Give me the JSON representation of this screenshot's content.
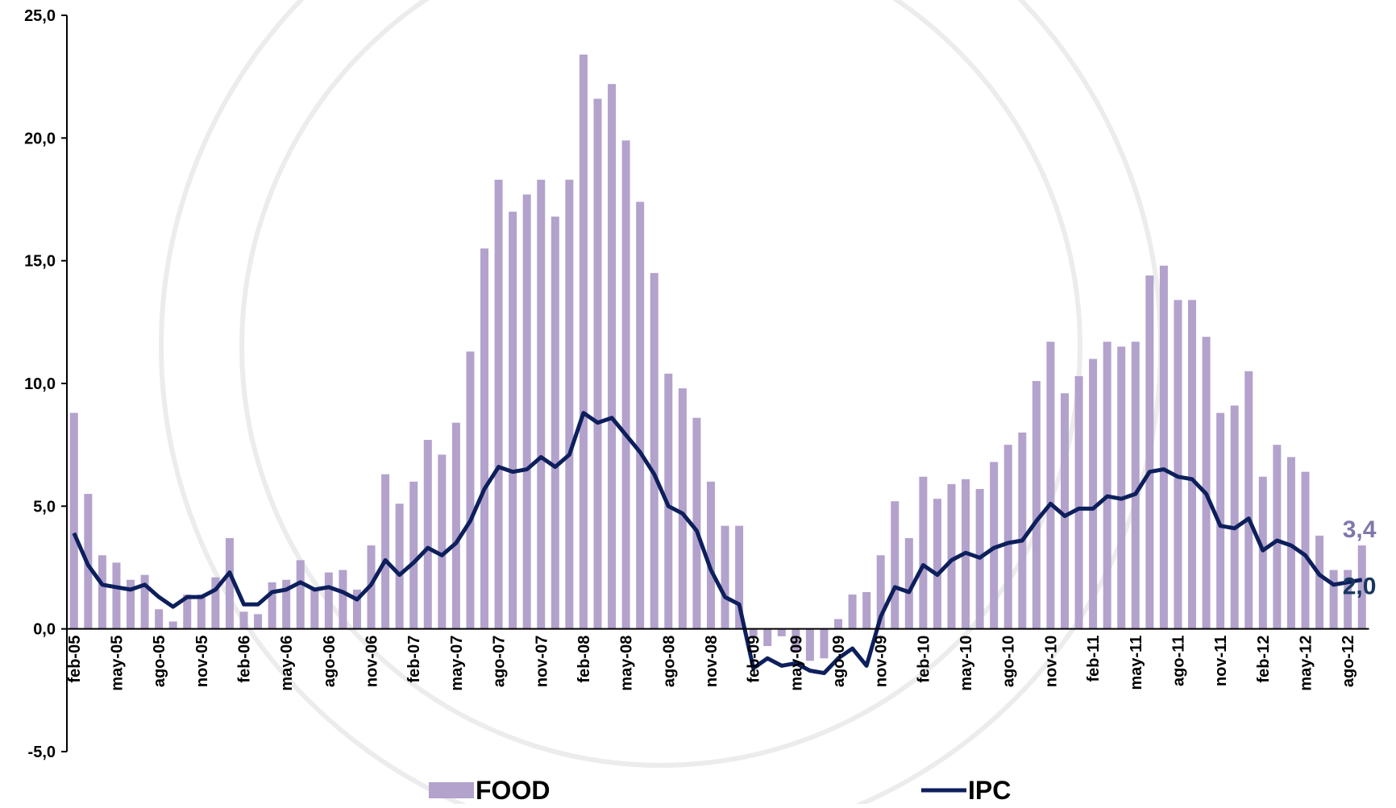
{
  "chart_data": {
    "type": "bar_line",
    "categories": [
      "feb-05",
      null,
      null,
      "may-05",
      null,
      null,
      "ago-05",
      null,
      null,
      "nov-05",
      null,
      null,
      "feb-06",
      null,
      null,
      "may-06",
      null,
      null,
      "ago-06",
      null,
      null,
      "nov-06",
      null,
      null,
      "feb-07",
      null,
      null,
      "may-07",
      null,
      null,
      "ago-07",
      null,
      null,
      "nov-07",
      null,
      null,
      "feb-08",
      null,
      null,
      "may-08",
      null,
      null,
      "ago-08",
      null,
      null,
      "nov-08",
      null,
      null,
      "feb-09",
      null,
      null,
      "may-09",
      null,
      null,
      "ago-09",
      null,
      null,
      "nov-09",
      null,
      null,
      "feb-10",
      null,
      null,
      "may-10",
      null,
      null,
      "ago-10",
      null,
      null,
      "nov-10",
      null,
      null,
      "feb-11",
      null,
      null,
      "may-11",
      null,
      null,
      "ago-11",
      null,
      null,
      "nov-11",
      null,
      null,
      "feb-12",
      null,
      null,
      "may-12",
      null,
      null,
      "ago-12",
      null
    ],
    "series": [
      {
        "name": "FOOD",
        "kind": "bar",
        "color": "#b3a2cc",
        "label_color": "#7f78ab",
        "values": [
          8.8,
          5.5,
          3.0,
          2.7,
          2.0,
          2.2,
          0.8,
          0.3,
          1.4,
          1.4,
          2.1,
          3.7,
          0.7,
          0.6,
          1.9,
          2.0,
          2.8,
          1.6,
          2.3,
          2.4,
          1.6,
          3.4,
          6.3,
          5.1,
          6.0,
          7.7,
          7.1,
          8.4,
          11.3,
          15.5,
          18.3,
          17.0,
          17.7,
          18.3,
          16.8,
          18.3,
          23.4,
          21.6,
          22.2,
          19.9,
          17.4,
          14.5,
          10.4,
          9.8,
          8.6,
          6.0,
          4.2,
          4.2,
          -0.3,
          -0.7,
          -0.3,
          -0.9,
          -1.3,
          -1.2,
          0.4,
          1.4,
          1.5,
          3.0,
          5.2,
          3.7,
          6.2,
          5.3,
          5.9,
          6.1,
          5.7,
          6.8,
          7.5,
          8.0,
          10.1,
          11.7,
          9.6,
          10.3,
          11.0,
          11.7,
          11.5,
          11.7,
          14.4,
          14.8,
          13.4,
          13.4,
          11.9,
          8.8,
          9.1,
          10.5,
          6.2,
          7.5,
          7.0,
          6.4,
          3.8,
          2.4,
          2.4,
          3.4
        ],
        "value_labels": [
          null,
          null,
          null,
          null,
          null,
          null,
          null,
          null,
          null,
          null,
          null,
          null,
          null,
          null,
          null,
          null,
          null,
          null,
          null,
          null,
          null,
          null,
          null,
          null,
          null,
          null,
          null,
          null,
          null,
          null,
          null,
          null,
          null,
          null,
          null,
          null,
          null,
          null,
          null,
          null,
          null,
          null,
          null,
          null,
          null,
          null,
          null,
          null,
          null,
          null,
          null,
          null,
          null,
          null,
          null,
          null,
          null,
          null,
          null,
          null,
          null,
          null,
          null,
          null,
          null,
          null,
          null,
          null,
          null,
          null,
          null,
          null,
          null,
          null,
          null,
          null,
          null,
          null,
          null,
          null,
          null,
          null,
          null,
          null,
          null,
          null,
          null,
          null,
          null,
          null,
          null,
          "3,4"
        ]
      },
      {
        "name": "IPC",
        "kind": "line",
        "color": "#0d1f5c",
        "label_color": "#17375e",
        "values": [
          3.9,
          2.6,
          1.8,
          1.7,
          1.6,
          1.8,
          1.3,
          0.9,
          1.3,
          1.3,
          1.6,
          2.3,
          1.0,
          1.0,
          1.5,
          1.6,
          1.9,
          1.6,
          1.7,
          1.5,
          1.2,
          1.8,
          2.8,
          2.2,
          2.7,
          3.3,
          3.0,
          3.5,
          4.4,
          5.7,
          6.6,
          6.4,
          6.5,
          7.0,
          6.6,
          7.1,
          8.8,
          8.4,
          8.6,
          7.9,
          7.2,
          6.3,
          5.0,
          4.7,
          4.0,
          2.4,
          1.3,
          1.0,
          -1.6,
          -1.2,
          -1.5,
          -1.4,
          -1.7,
          -1.8,
          -1.2,
          -0.8,
          -1.5,
          0.5,
          1.7,
          1.5,
          2.6,
          2.2,
          2.8,
          3.1,
          2.9,
          3.3,
          3.5,
          3.6,
          4.4,
          5.1,
          4.6,
          4.9,
          4.9,
          5.4,
          5.3,
          5.5,
          6.4,
          6.5,
          6.2,
          6.1,
          5.5,
          4.2,
          4.1,
          4.5,
          3.2,
          3.6,
          3.4,
          3.0,
          2.2,
          1.8,
          1.9,
          2.0
        ],
        "value_labels": [
          null,
          null,
          null,
          null,
          null,
          null,
          null,
          null,
          null,
          null,
          null,
          null,
          null,
          null,
          null,
          null,
          null,
          null,
          null,
          null,
          null,
          null,
          null,
          null,
          null,
          null,
          null,
          null,
          null,
          null,
          null,
          null,
          null,
          null,
          null,
          null,
          null,
          null,
          null,
          null,
          null,
          null,
          null,
          null,
          null,
          null,
          null,
          null,
          null,
          null,
          null,
          null,
          null,
          null,
          null,
          null,
          null,
          null,
          null,
          null,
          null,
          null,
          null,
          null,
          null,
          null,
          null,
          null,
          null,
          null,
          null,
          null,
          null,
          null,
          null,
          null,
          null,
          null,
          null,
          null,
          null,
          null,
          null,
          null,
          null,
          null,
          null,
          null,
          null,
          null,
          null,
          "2,0"
        ]
      }
    ],
    "ylim": [
      -5,
      25
    ],
    "yticks": [
      {
        "value": -5,
        "label": "-5,0"
      },
      {
        "value": 0,
        "label": "0,0"
      },
      {
        "value": 5,
        "label": "5,0"
      },
      {
        "value": 10,
        "label": "10,0"
      },
      {
        "value": 15,
        "label": "15,0"
      },
      {
        "value": 20,
        "label": "20,0"
      },
      {
        "value": 25,
        "label": "25,0"
      }
    ],
    "legend": "bottom"
  }
}
